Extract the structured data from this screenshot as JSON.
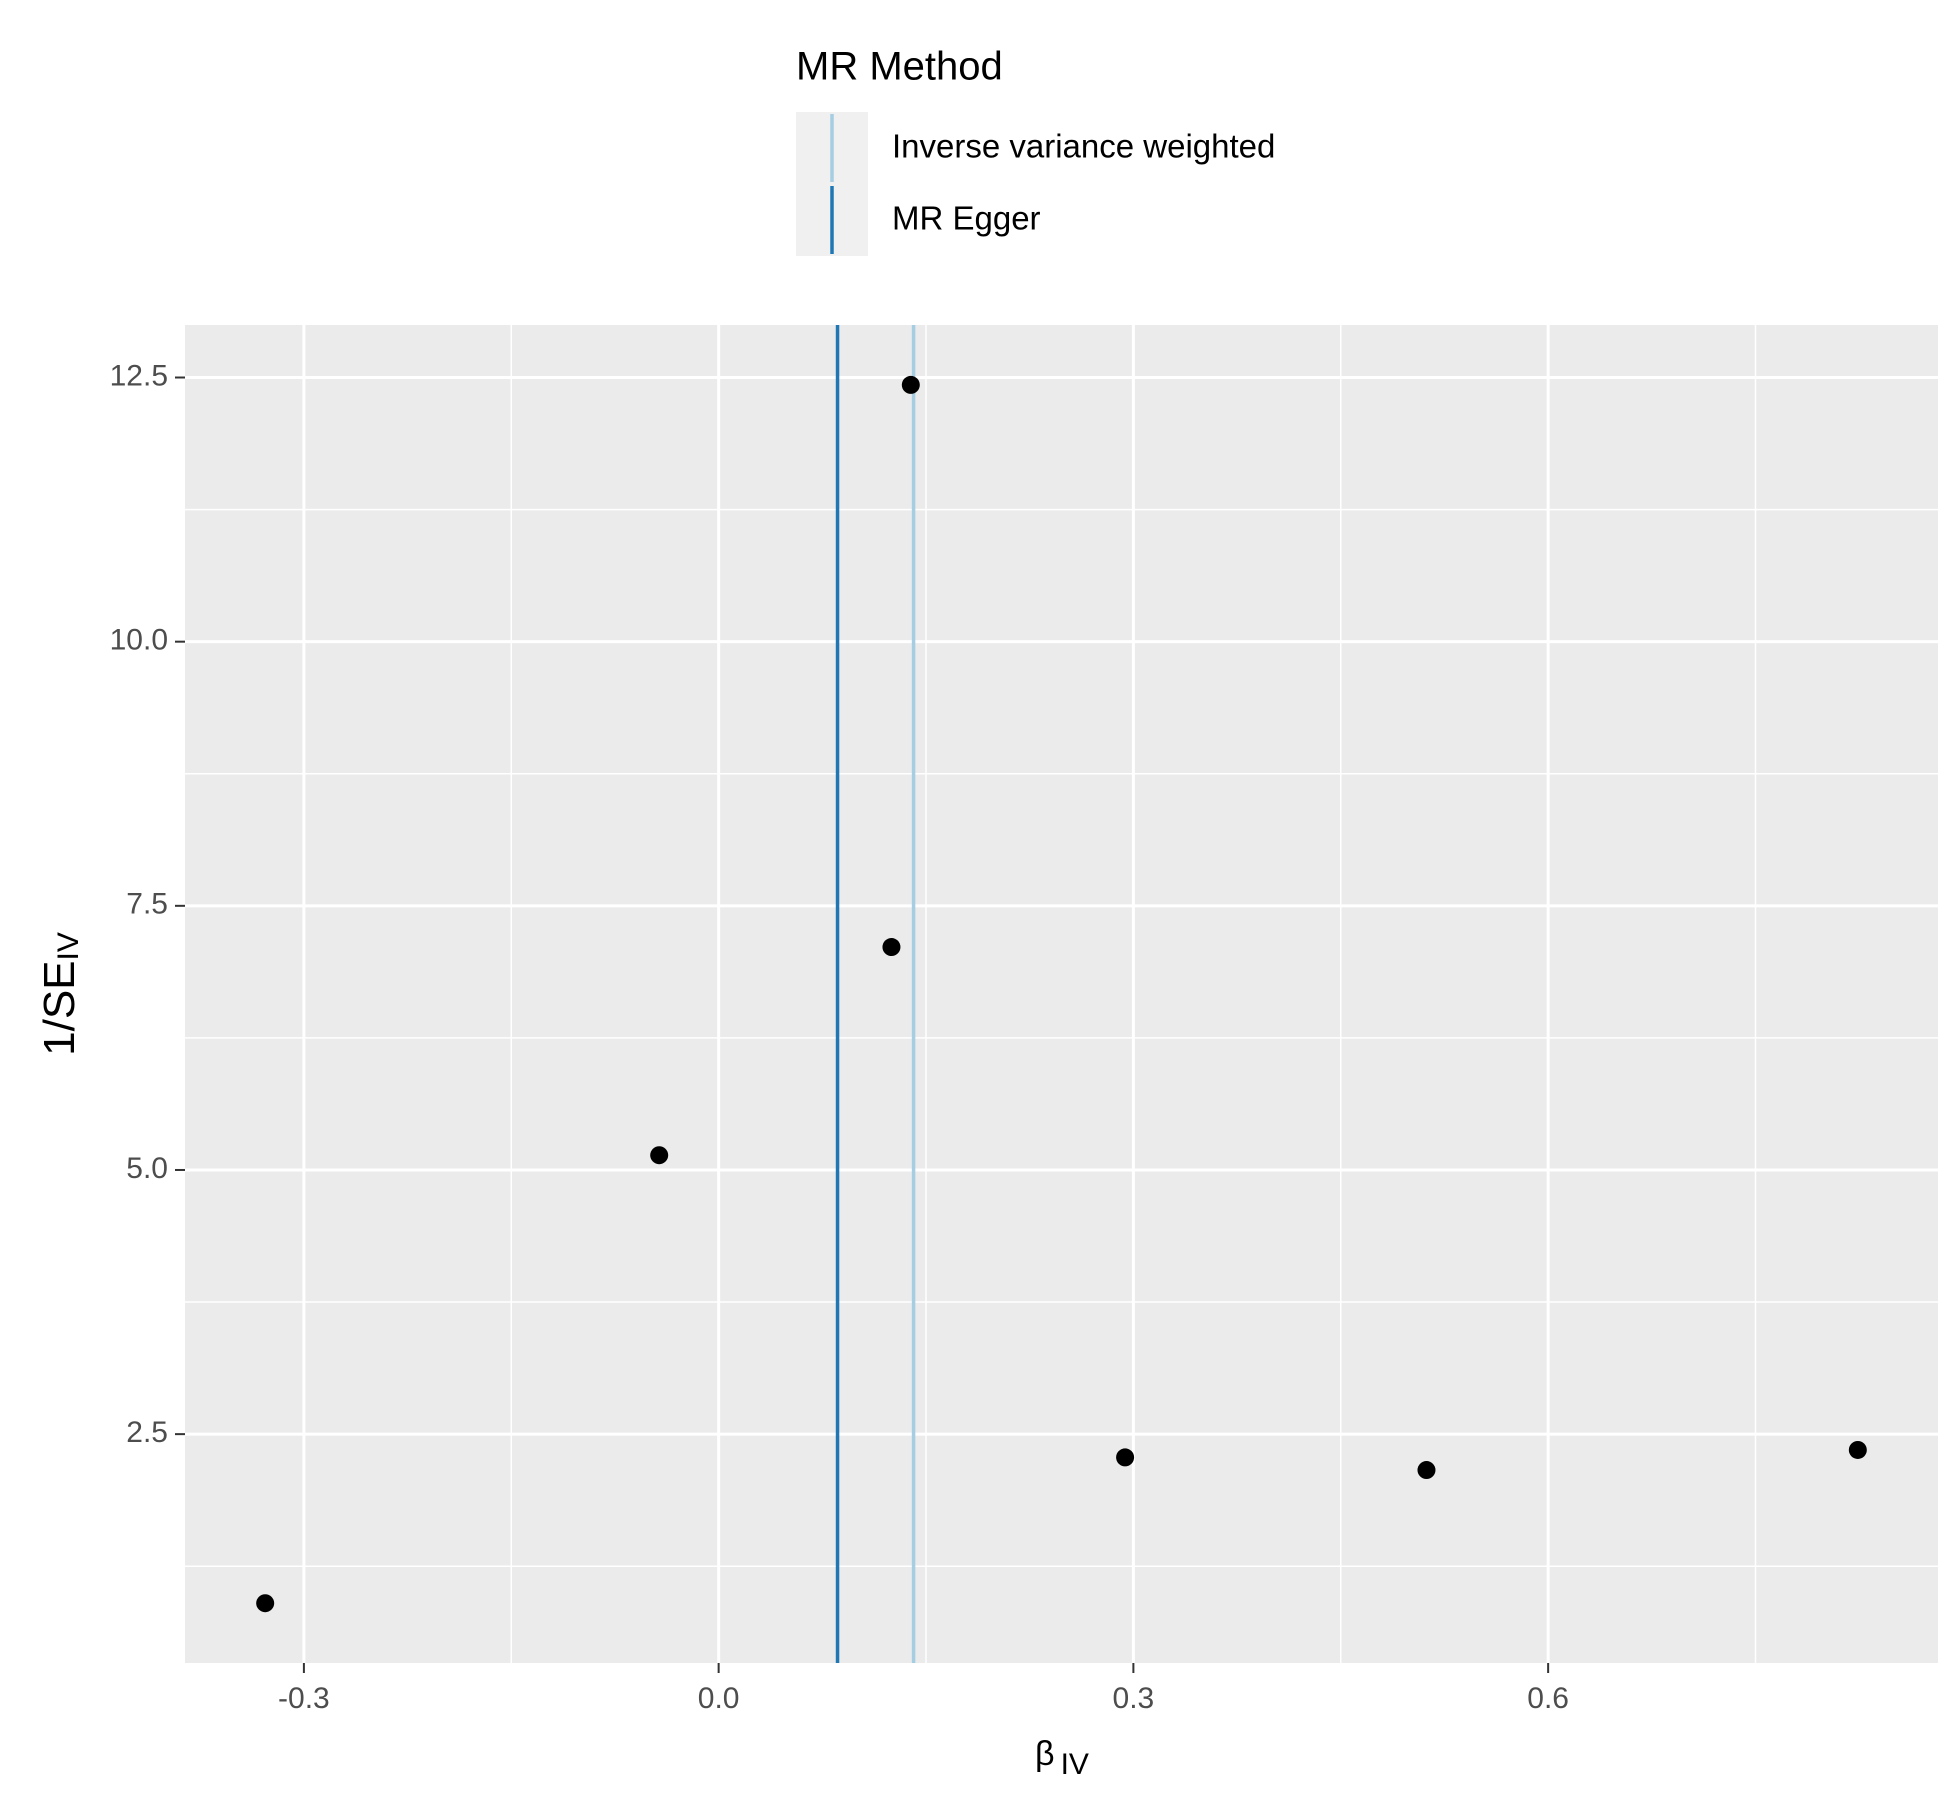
{
  "chart_data": {
    "type": "scatter",
    "x_label": "β",
    "x_label_sub": "IV",
    "y_label": "1/SE",
    "y_label_sub": "IV",
    "x": [
      -0.328,
      -0.043,
      0.125,
      0.139,
      0.294,
      0.512,
      0.824
    ],
    "y": [
      0.9,
      5.14,
      7.11,
      12.43,
      2.28,
      2.16,
      2.35
    ],
    "point_color": "#000000",
    "legend_title": "MR Method",
    "lines": [
      {
        "name": "Inverse variance weighted",
        "color": "#a6cee3",
        "value": 0.141
      },
      {
        "name": "MR Egger",
        "color": "#1f78b4",
        "value": 0.086
      }
    ],
    "xlim": [
      -0.386,
      0.882
    ],
    "ylim": [
      0.334,
      12.997
    ],
    "xticks": [
      -0.3,
      {
        "value": 0,
        "label": "0.0"
      },
      0.3,
      0.6
    ],
    "yticks": [
      2.5,
      {
        "value": 5,
        "label": "5.0"
      },
      7.5,
      {
        "value": 10,
        "label": "10.0"
      },
      12.5
    ],
    "grid": true
  }
}
